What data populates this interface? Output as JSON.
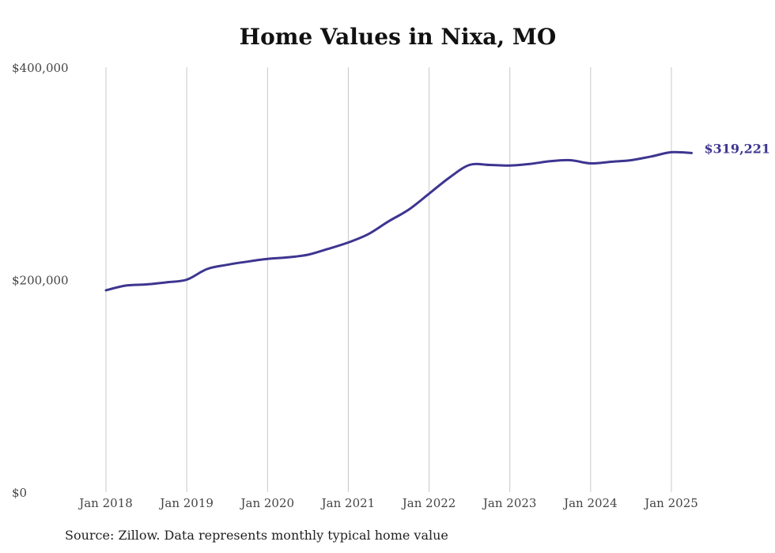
{
  "chart_data": {
    "type": "line",
    "title": "Home Values in Nixa, MO",
    "source": "Source: Zillow. Data represents monthly typical home value",
    "xlabel": "",
    "ylabel": "",
    "ylim": [
      0,
      400000
    ],
    "y_ticks": [
      {
        "value": 0,
        "label": "$0"
      },
      {
        "value": 200000,
        "label": "$200,000"
      },
      {
        "value": 400000,
        "label": "$400,000"
      }
    ],
    "x_ticks": [
      {
        "value": 2018.0,
        "label": "Jan 2018"
      },
      {
        "value": 2019.0,
        "label": "Jan 2019"
      },
      {
        "value": 2020.0,
        "label": "Jan 2020"
      },
      {
        "value": 2021.0,
        "label": "Jan 2021"
      },
      {
        "value": 2022.0,
        "label": "Jan 2022"
      },
      {
        "value": 2023.0,
        "label": "Jan 2023"
      },
      {
        "value": 2024.0,
        "label": "Jan 2024"
      },
      {
        "value": 2025.0,
        "label": "Jan 2025"
      }
    ],
    "grid": "vertical",
    "end_label": "$319,221",
    "series": [
      {
        "color": "#3d3590",
        "x": [
          2018.0,
          2018.25,
          2018.5,
          2018.75,
          2019.0,
          2019.25,
          2019.5,
          2019.75,
          2020.0,
          2020.25,
          2020.5,
          2020.75,
          2021.0,
          2021.25,
          2021.5,
          2021.75,
          2022.0,
          2022.25,
          2022.5,
          2022.75,
          2023.0,
          2023.25,
          2023.5,
          2023.75,
          2024.0,
          2024.25,
          2024.5,
          2024.75,
          2025.0,
          2025.25
        ],
        "y": [
          190000,
          194500,
          195500,
          197500,
          200000,
          210000,
          214000,
          217000,
          219500,
          221000,
          223500,
          229000,
          235000,
          243000,
          255000,
          266000,
          281000,
          296000,
          308000,
          308000,
          307500,
          309000,
          311500,
          312500,
          309500,
          311000,
          312500,
          316000,
          320000,
          319221
        ]
      }
    ]
  }
}
